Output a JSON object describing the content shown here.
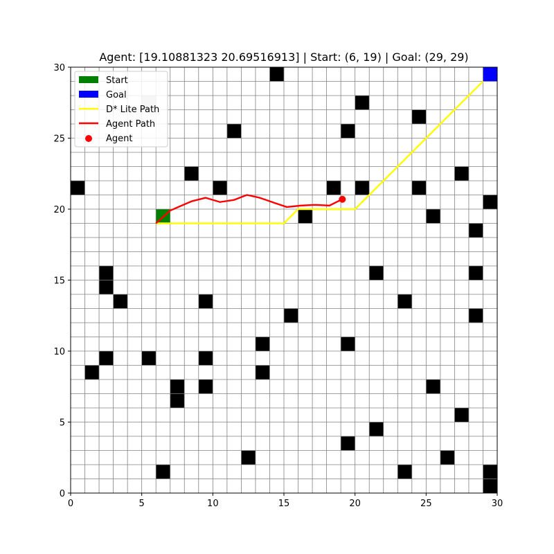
{
  "chart_data": {
    "type": "scatter",
    "title": "Agent: [19.10881323 20.69516913] | Start: (6, 19) | Goal: (29, 29)",
    "xlabel": "",
    "ylabel": "",
    "xlim": [
      0,
      30
    ],
    "ylim": [
      0,
      30
    ],
    "grid": true,
    "xticks": [
      0,
      5,
      10,
      15,
      20,
      25,
      30
    ],
    "yticks": [
      0,
      5,
      10,
      15,
      20,
      25,
      30
    ],
    "legend_position": "top-left",
    "legend": [
      {
        "label": "Start",
        "kind": "patch",
        "color": "#008000"
      },
      {
        "label": "Goal",
        "kind": "patch",
        "color": "#0000ff"
      },
      {
        "label": "D* Lite Path",
        "kind": "line",
        "color": "#ffff00"
      },
      {
        "label": "Agent Path",
        "kind": "line",
        "color": "#ff0000"
      },
      {
        "label": "Agent",
        "kind": "marker",
        "color": "#ff0000"
      }
    ],
    "start": {
      "cell": [
        6,
        19
      ],
      "color": "#008000"
    },
    "goal": {
      "cell": [
        29,
        29
      ],
      "color": "#0000ff"
    },
    "visited_cells": [
      [
        5,
        27
      ]
    ],
    "obstacles": [
      [
        14,
        29
      ],
      [
        20,
        27
      ],
      [
        24,
        26
      ],
      [
        11,
        25
      ],
      [
        19,
        25
      ],
      [
        8,
        22
      ],
      [
        27,
        22
      ],
      [
        0,
        21
      ],
      [
        10,
        21
      ],
      [
        18,
        21
      ],
      [
        20,
        21
      ],
      [
        24,
        21
      ],
      [
        29,
        20
      ],
      [
        16,
        19
      ],
      [
        25,
        19
      ],
      [
        28,
        18
      ],
      [
        2,
        15
      ],
      [
        21,
        15
      ],
      [
        28,
        15
      ],
      [
        2,
        14
      ],
      [
        3,
        13
      ],
      [
        9,
        13
      ],
      [
        23,
        13
      ],
      [
        15,
        12
      ],
      [
        28,
        12
      ],
      [
        13,
        10
      ],
      [
        19,
        10
      ],
      [
        2,
        9
      ],
      [
        5,
        9
      ],
      [
        9,
        9
      ],
      [
        1,
        8
      ],
      [
        13,
        8
      ],
      [
        7,
        7
      ],
      [
        9,
        7
      ],
      [
        25,
        7
      ],
      [
        7,
        6
      ],
      [
        27,
        5
      ],
      [
        21,
        4
      ],
      [
        19,
        3
      ],
      [
        12,
        2
      ],
      [
        26,
        2
      ],
      [
        6,
        1
      ],
      [
        23,
        1
      ],
      [
        29,
        1
      ],
      [
        29,
        0
      ]
    ],
    "series": [
      {
        "name": "D* Lite Path",
        "color": "#ffff00",
        "x": [
          6,
          7,
          8,
          9,
          10,
          11,
          12,
          13,
          14,
          15,
          16,
          17,
          18,
          19,
          20,
          21,
          22,
          23,
          24,
          25,
          26,
          27,
          28,
          29
        ],
        "y": [
          19,
          19,
          19,
          19,
          19,
          19,
          19,
          19,
          19,
          19,
          20,
          20,
          20,
          20,
          20,
          21,
          22,
          23,
          24,
          25,
          26,
          27,
          28,
          29
        ]
      },
      {
        "name": "Agent Path",
        "color": "#ff0000",
        "x": [
          6.0,
          7.0,
          8.5,
          9.5,
          10.5,
          11.5,
          12.4,
          13.3,
          14.3,
          15.2,
          16.2,
          17.2,
          18.2,
          19.1
        ],
        "y": [
          19.0,
          19.9,
          20.55,
          20.8,
          20.5,
          20.65,
          21.0,
          20.8,
          20.45,
          20.15,
          20.25,
          20.3,
          20.25,
          20.7
        ]
      }
    ],
    "agent": {
      "x": 19.10881323,
      "y": 20.69516913,
      "color": "#ff0000"
    }
  }
}
